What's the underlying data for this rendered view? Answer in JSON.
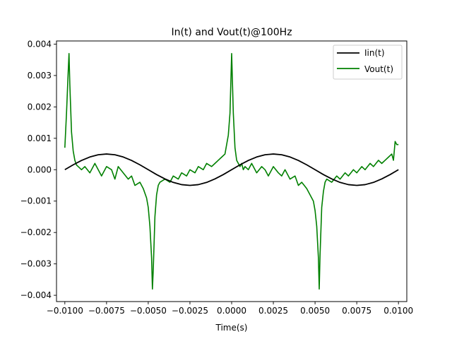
{
  "chart_data": {
    "type": "line",
    "title": "In(t) and Vout(t)@100Hz",
    "xlabel": "Time(s)",
    "ylabel": "",
    "xlim": [
      -0.0105,
      0.0105
    ],
    "ylim": [
      -0.0042,
      0.0041
    ],
    "xticks": [
      -0.01,
      -0.0075,
      -0.005,
      -0.0025,
      0.0,
      0.0025,
      0.005,
      0.0075,
      0.01
    ],
    "xtick_labels": [
      "−0.0100",
      "−0.0075",
      "−0.0050",
      "−0.0025",
      "0.0000",
      "0.0025",
      "0.0050",
      "0.0075",
      "0.0100"
    ],
    "yticks": [
      -0.004,
      -0.003,
      -0.002,
      -0.001,
      0.0,
      0.001,
      0.002,
      0.003,
      0.004
    ],
    "ytick_labels": [
      "−0.004",
      "−0.003",
      "−0.002",
      "−0.001",
      "0.000",
      "0.001",
      "0.002",
      "0.003",
      "0.004"
    ],
    "legend_position": "top-right",
    "grid": false,
    "series": [
      {
        "name": "Iin(t)",
        "color": "#000000",
        "x": [
          -0.01,
          -0.0095,
          -0.009,
          -0.0085,
          -0.008,
          -0.0075,
          -0.007,
          -0.0065,
          -0.006,
          -0.0055,
          -0.005,
          -0.0045,
          -0.004,
          -0.0035,
          -0.003,
          -0.0025,
          -0.002,
          -0.0015,
          -0.001,
          -0.0005,
          0.0,
          0.0005,
          0.001,
          0.0015,
          0.002,
          0.0025,
          0.003,
          0.0035,
          0.004,
          0.0045,
          0.005,
          0.0055,
          0.006,
          0.0065,
          0.007,
          0.0075,
          0.008,
          0.0085,
          0.009,
          0.0095,
          0.01
        ],
        "y": [
          0.0,
          0.000155,
          0.000294,
          0.000405,
          0.000476,
          0.0005,
          0.000476,
          0.000405,
          0.000294,
          0.000155,
          0.0,
          -0.000155,
          -0.000294,
          -0.000405,
          -0.000476,
          -0.0005,
          -0.000476,
          -0.000405,
          -0.000294,
          -0.000155,
          0.0,
          0.000155,
          0.000294,
          0.000405,
          0.000476,
          0.0005,
          0.000476,
          0.000405,
          0.000294,
          0.000155,
          0.0,
          -0.000155,
          -0.000294,
          -0.000405,
          -0.000476,
          -0.0005,
          -0.000476,
          -0.000405,
          -0.000294,
          -0.000155,
          0.0
        ]
      },
      {
        "name": "Vout(t)",
        "color": "#008000",
        "x": [
          -0.01,
          -0.0099,
          -0.0098,
          -0.00975,
          -0.0097,
          -0.0096,
          -0.0095,
          -0.0094,
          -0.0093,
          -0.0092,
          -0.009,
          -0.0088,
          -0.0085,
          -0.0082,
          -0.008,
          -0.0078,
          -0.0075,
          -0.0072,
          -0.007,
          -0.0068,
          -0.0065,
          -0.0062,
          -0.006,
          -0.0058,
          -0.0055,
          -0.0053,
          -0.0051,
          -0.005,
          -0.0049,
          -0.0048,
          -0.00475,
          -0.0047,
          -0.0046,
          -0.0045,
          -0.0044,
          -0.0043,
          -0.004,
          -0.0037,
          -0.0035,
          -0.0032,
          -0.003,
          -0.0027,
          -0.0025,
          -0.0022,
          -0.002,
          -0.0017,
          -0.0015,
          -0.0012,
          -0.001,
          -0.0008,
          -0.0006,
          -0.0004,
          -0.0003,
          -0.0002,
          -0.0001,
          0.0,
          0.0001,
          0.0002,
          0.0003,
          0.0004,
          0.0005,
          0.0006,
          0.0007,
          0.0008,
          0.001,
          0.0012,
          0.0015,
          0.0018,
          0.002,
          0.0022,
          0.0025,
          0.0028,
          0.003,
          0.0032,
          0.0035,
          0.0038,
          0.004,
          0.0042,
          0.0045,
          0.0047,
          0.0049,
          0.005,
          0.0051,
          0.0052,
          0.00525,
          0.0053,
          0.0054,
          0.0055,
          0.0056,
          0.0057,
          0.006,
          0.0063,
          0.0065,
          0.0068,
          0.007,
          0.0073,
          0.0075,
          0.0078,
          0.008,
          0.0083,
          0.0085,
          0.0088,
          0.009,
          0.0092,
          0.0094,
          0.0096,
          0.0097,
          0.0098,
          0.0099,
          0.01
        ],
        "y": [
          0.0007,
          0.0018,
          0.0031,
          0.0037,
          0.0027,
          0.0012,
          0.0006,
          0.0003,
          0.00015,
          0.0001,
          0.0,
          0.0001,
          -0.0001,
          0.0002,
          0.0,
          -0.0002,
          0.0001,
          0.0,
          -0.0003,
          0.0001,
          -0.0001,
          -0.0003,
          -0.0002,
          -0.0005,
          -0.0004,
          -0.0006,
          -0.0009,
          -0.0012,
          -0.0018,
          -0.0028,
          -0.0038,
          -0.0032,
          -0.0015,
          -0.0008,
          -0.0005,
          -0.0004,
          -0.0003,
          -0.0004,
          -0.0002,
          -0.0003,
          -0.0001,
          -0.0002,
          0.0,
          -0.0001,
          0.0001,
          0.0,
          0.0002,
          0.0001,
          0.0002,
          0.0003,
          0.0004,
          0.0005,
          0.0008,
          0.0011,
          0.0018,
          0.0037,
          0.0018,
          0.0007,
          0.0003,
          0.0002,
          0.0001,
          0.0002,
          0.0,
          0.0001,
          0.0,
          0.0002,
          -0.0001,
          0.0001,
          0.0,
          -0.0002,
          0.0001,
          -0.0001,
          -0.0002,
          0.0,
          -0.0003,
          -0.0002,
          -0.0005,
          -0.0004,
          -0.0006,
          -0.0008,
          -0.001,
          -0.0013,
          -0.0018,
          -0.0028,
          -0.0038,
          -0.0027,
          -0.0012,
          -0.0007,
          -0.0004,
          -0.0003,
          -0.0004,
          -0.0002,
          -0.0003,
          -0.0001,
          -0.0002,
          0.0,
          -0.0001,
          0.0001,
          0.0,
          0.0002,
          0.0001,
          0.0003,
          0.0002,
          0.0003,
          0.0004,
          0.0005,
          0.0003,
          0.0009,
          0.0008,
          0.0008
        ]
      }
    ]
  }
}
